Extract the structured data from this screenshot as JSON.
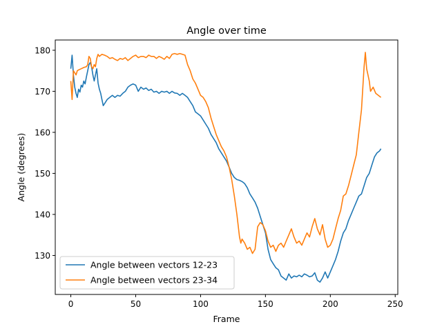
{
  "chart_data": {
    "type": "line",
    "title": "Angle over time",
    "xlabel": "Frame",
    "ylabel": "Angle (degrees)",
    "xlim": [
      -12,
      252
    ],
    "ylim": [
      120.5,
      182.5
    ],
    "xticks": [
      0,
      50,
      100,
      150,
      200,
      250
    ],
    "yticks": [
      130,
      140,
      150,
      160,
      170,
      180
    ],
    "grid": false,
    "legend_position": "lower-left",
    "series": [
      {
        "name": "Angle between vectors 12-23",
        "color": "#1f77b4",
        "points": [
          [
            0,
            175.5
          ],
          [
            1,
            178.8
          ],
          [
            2,
            174.0
          ],
          [
            3,
            171.0
          ],
          [
            4,
            169.5
          ],
          [
            5,
            168.5
          ],
          [
            6,
            170.5
          ],
          [
            7,
            169.8
          ],
          [
            8,
            171.5
          ],
          [
            9,
            171.0
          ],
          [
            10,
            172.5
          ],
          [
            11,
            171.8
          ],
          [
            12,
            173.5
          ],
          [
            13,
            175.0
          ],
          [
            14,
            176.5
          ],
          [
            15,
            177.0
          ],
          [
            16,
            176.0
          ],
          [
            17,
            174.0
          ],
          [
            18,
            172.5
          ],
          [
            20,
            175.5
          ],
          [
            21,
            172.0
          ],
          [
            22,
            170.5
          ],
          [
            23,
            169.5
          ],
          [
            24,
            168.0
          ],
          [
            25,
            166.5
          ],
          [
            26,
            167.0
          ],
          [
            28,
            168.0
          ],
          [
            30,
            168.5
          ],
          [
            32,
            169.0
          ],
          [
            34,
            168.5
          ],
          [
            36,
            169.0
          ],
          [
            38,
            168.8
          ],
          [
            40,
            169.5
          ],
          [
            42,
            170.0
          ],
          [
            44,
            171.0
          ],
          [
            46,
            171.5
          ],
          [
            48,
            171.8
          ],
          [
            50,
            171.5
          ],
          [
            52,
            170.0
          ],
          [
            54,
            171.0
          ],
          [
            56,
            170.5
          ],
          [
            58,
            170.8
          ],
          [
            60,
            170.2
          ],
          [
            62,
            170.5
          ],
          [
            64,
            169.8
          ],
          [
            66,
            170.0
          ],
          [
            68,
            169.5
          ],
          [
            70,
            170.0
          ],
          [
            72,
            169.8
          ],
          [
            74,
            170.0
          ],
          [
            76,
            169.5
          ],
          [
            78,
            170.0
          ],
          [
            80,
            169.6
          ],
          [
            82,
            169.5
          ],
          [
            84,
            169.0
          ],
          [
            86,
            169.5
          ],
          [
            88,
            169.0
          ],
          [
            90,
            168.5
          ],
          [
            92,
            167.5
          ],
          [
            94,
            166.5
          ],
          [
            96,
            165.0
          ],
          [
            98,
            164.5
          ],
          [
            100,
            164.0
          ],
          [
            102,
            163.0
          ],
          [
            104,
            162.0
          ],
          [
            106,
            161.0
          ],
          [
            108,
            159.5
          ],
          [
            110,
            158.5
          ],
          [
            112,
            157.5
          ],
          [
            114,
            156.0
          ],
          [
            116,
            155.0
          ],
          [
            118,
            154.0
          ],
          [
            120,
            153.0
          ],
          [
            122,
            151.5
          ],
          [
            124,
            150.0
          ],
          [
            126,
            149.0
          ],
          [
            128,
            148.5
          ],
          [
            130,
            148.3
          ],
          [
            132,
            148.0
          ],
          [
            134,
            147.5
          ],
          [
            136,
            146.5
          ],
          [
            138,
            145.0
          ],
          [
            140,
            144.0
          ],
          [
            142,
            143.0
          ],
          [
            144,
            141.5
          ],
          [
            146,
            139.5
          ],
          [
            148,
            137.5
          ],
          [
            150,
            135.5
          ],
          [
            152,
            131.5
          ],
          [
            154,
            129.0
          ],
          [
            156,
            128.0
          ],
          [
            158,
            127.0
          ],
          [
            160,
            126.5
          ],
          [
            162,
            125.0
          ],
          [
            164,
            124.5
          ],
          [
            166,
            124.0
          ],
          [
            168,
            125.5
          ],
          [
            170,
            124.5
          ],
          [
            172,
            125.0
          ],
          [
            174,
            124.8
          ],
          [
            176,
            125.2
          ],
          [
            178,
            124.8
          ],
          [
            180,
            125.5
          ],
          [
            182,
            125.2
          ],
          [
            184,
            124.8
          ],
          [
            186,
            125.0
          ],
          [
            188,
            125.8
          ],
          [
            190,
            124.0
          ],
          [
            192,
            123.5
          ],
          [
            194,
            124.5
          ],
          [
            196,
            126.0
          ],
          [
            198,
            124.5
          ],
          [
            200,
            126.0
          ],
          [
            202,
            127.5
          ],
          [
            204,
            129.0
          ],
          [
            206,
            131.0
          ],
          [
            208,
            133.5
          ],
          [
            210,
            135.5
          ],
          [
            212,
            136.5
          ],
          [
            214,
            138.5
          ],
          [
            216,
            140.0
          ],
          [
            218,
            141.5
          ],
          [
            220,
            143.0
          ],
          [
            222,
            144.5
          ],
          [
            224,
            145.0
          ],
          [
            226,
            147.0
          ],
          [
            228,
            149.0
          ],
          [
            230,
            150.0
          ],
          [
            232,
            152.0
          ],
          [
            234,
            154.0
          ],
          [
            236,
            155.0
          ],
          [
            238,
            155.5
          ],
          [
            239,
            156.0
          ]
        ]
      },
      {
        "name": "Angle between vectors 23-34",
        "color": "#ff7f0e",
        "points": [
          [
            0,
            172.5
          ],
          [
            1,
            168.0
          ],
          [
            2,
            175.0
          ],
          [
            3,
            174.5
          ],
          [
            4,
            174.0
          ],
          [
            5,
            175.0
          ],
          [
            6,
            175.2
          ],
          [
            8,
            175.5
          ],
          [
            10,
            175.8
          ],
          [
            12,
            176.0
          ],
          [
            13,
            176.5
          ],
          [
            14,
            178.5
          ],
          [
            15,
            178.0
          ],
          [
            16,
            176.0
          ],
          [
            17,
            175.5
          ],
          [
            18,
            176.5
          ],
          [
            19,
            176.0
          ],
          [
            20,
            178.0
          ],
          [
            21,
            179.0
          ],
          [
            22,
            178.5
          ],
          [
            24,
            179.0
          ],
          [
            26,
            178.8
          ],
          [
            28,
            178.5
          ],
          [
            30,
            178.0
          ],
          [
            32,
            178.2
          ],
          [
            34,
            177.8
          ],
          [
            36,
            177.5
          ],
          [
            38,
            178.0
          ],
          [
            40,
            177.8
          ],
          [
            42,
            178.2
          ],
          [
            44,
            177.5
          ],
          [
            46,
            178.0
          ],
          [
            48,
            178.5
          ],
          [
            50,
            178.8
          ],
          [
            52,
            178.2
          ],
          [
            54,
            178.5
          ],
          [
            56,
            178.5
          ],
          [
            58,
            178.2
          ],
          [
            60,
            178.8
          ],
          [
            62,
            178.5
          ],
          [
            64,
            178.5
          ],
          [
            66,
            178.0
          ],
          [
            68,
            178.5
          ],
          [
            70,
            178.2
          ],
          [
            72,
            177.8
          ],
          [
            74,
            178.5
          ],
          [
            76,
            178.0
          ],
          [
            78,
            179.0
          ],
          [
            80,
            179.2
          ],
          [
            82,
            179.0
          ],
          [
            84,
            179.2
          ],
          [
            86,
            179.0
          ],
          [
            88,
            178.8
          ],
          [
            90,
            176.5
          ],
          [
            92,
            175.0
          ],
          [
            94,
            173.0
          ],
          [
            96,
            172.0
          ],
          [
            98,
            170.5
          ],
          [
            100,
            169.0
          ],
          [
            102,
            168.5
          ],
          [
            104,
            167.5
          ],
          [
            106,
            166.0
          ],
          [
            108,
            163.5
          ],
          [
            110,
            161.5
          ],
          [
            112,
            159.5
          ],
          [
            114,
            158.0
          ],
          [
            116,
            156.5
          ],
          [
            118,
            155.5
          ],
          [
            120,
            154.0
          ],
          [
            122,
            151.5
          ],
          [
            124,
            148.5
          ],
          [
            126,
            144.5
          ],
          [
            128,
            140.0
          ],
          [
            130,
            134.5
          ],
          [
            131,
            133.0
          ],
          [
            132,
            134.0
          ],
          [
            134,
            133.0
          ],
          [
            136,
            131.5
          ],
          [
            138,
            132.0
          ],
          [
            140,
            130.5
          ],
          [
            142,
            131.5
          ],
          [
            144,
            137.0
          ],
          [
            146,
            138.0
          ],
          [
            148,
            137.5
          ],
          [
            150,
            136.0
          ],
          [
            152,
            133.5
          ],
          [
            154,
            132.0
          ],
          [
            156,
            132.5
          ],
          [
            158,
            131.0
          ],
          [
            160,
            132.5
          ],
          [
            162,
            133.0
          ],
          [
            164,
            132.0
          ],
          [
            166,
            133.5
          ],
          [
            168,
            135.0
          ],
          [
            170,
            136.5
          ],
          [
            172,
            134.5
          ],
          [
            174,
            133.0
          ],
          [
            176,
            133.5
          ],
          [
            178,
            132.5
          ],
          [
            180,
            134.0
          ],
          [
            182,
            135.5
          ],
          [
            184,
            134.5
          ],
          [
            186,
            137.0
          ],
          [
            188,
            139.0
          ],
          [
            190,
            136.5
          ],
          [
            192,
            135.0
          ],
          [
            194,
            137.5
          ],
          [
            196,
            134.0
          ],
          [
            198,
            132.0
          ],
          [
            200,
            132.5
          ],
          [
            202,
            134.0
          ],
          [
            204,
            136.5
          ],
          [
            206,
            139.0
          ],
          [
            208,
            141.0
          ],
          [
            210,
            144.5
          ],
          [
            212,
            145.0
          ],
          [
            214,
            147.0
          ],
          [
            216,
            149.5
          ],
          [
            218,
            152.0
          ],
          [
            220,
            154.5
          ],
          [
            222,
            160.0
          ],
          [
            224,
            165.5
          ],
          [
            226,
            176.0
          ],
          [
            227,
            179.5
          ],
          [
            228,
            175.5
          ],
          [
            230,
            172.5
          ],
          [
            231,
            170.0
          ],
          [
            233,
            171.0
          ],
          [
            235,
            169.5
          ],
          [
            237,
            169.0
          ],
          [
            239,
            168.5
          ]
        ]
      }
    ]
  }
}
